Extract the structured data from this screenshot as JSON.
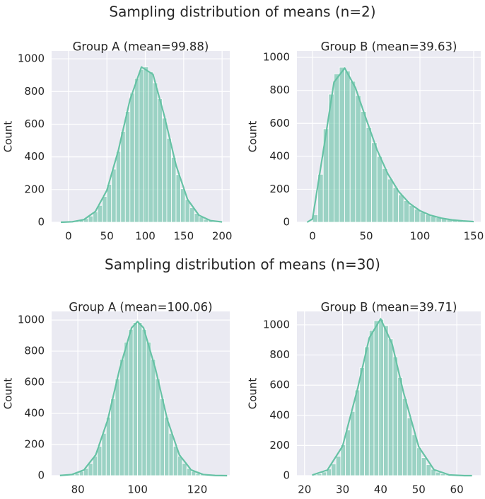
{
  "suptitles": [
    "Sampling distribution of means (n=2)",
    "Sampling distribution of means (n=30)"
  ],
  "chart_data": [
    {
      "type": "histogram",
      "title": "Group A (mean=99.88)",
      "ylabel": "Count",
      "color": "#66c2a5",
      "grid": true,
      "bins": [
        -4,
        2,
        8,
        14,
        20,
        26,
        32,
        38,
        44,
        50,
        56,
        62,
        68,
        74,
        80,
        86,
        92,
        98,
        104,
        110,
        116,
        122,
        128,
        134,
        140,
        146,
        152,
        158,
        164,
        170,
        176,
        182,
        188,
        194
      ],
      "values": [
        1,
        3,
        6,
        12,
        22,
        38,
        64,
        103,
        158,
        232,
        325,
        434,
        556,
        678,
        790,
        880,
        935,
        950,
        921,
        853,
        755,
        637,
        514,
        397,
        291,
        205,
        138,
        89,
        54,
        32,
        18,
        10,
        5
      ],
      "kde": {
        "x": [
          -10,
          5,
          20,
          35,
          50,
          65,
          80,
          95,
          110,
          125,
          140,
          155,
          170,
          185,
          200
        ],
        "values": [
          0,
          3,
          16,
          66,
          196,
          441,
          748,
          950,
          905,
          647,
          349,
          140,
          42,
          10,
          2
        ]
      },
      "xlim": [
        -22,
        210
      ],
      "ylim": [
        0,
        1048
      ],
      "xticks": [
        0,
        50,
        100,
        150,
        200
      ],
      "yticks": [
        0,
        200,
        400,
        600,
        800,
        1000
      ]
    },
    {
      "type": "histogram",
      "title": "Group B (mean=39.63)",
      "ylabel": "Count",
      "color": "#66c2a5",
      "grid": true,
      "bins": [
        0,
        5,
        10,
        15,
        20,
        25,
        30,
        35,
        40,
        45,
        50,
        55,
        60,
        65,
        70,
        75,
        80,
        85,
        90,
        95,
        100,
        105,
        110,
        115,
        120,
        125,
        130,
        135,
        140,
        145
      ],
      "values": [
        46,
        291,
        567,
        777,
        900,
        940,
        918,
        855,
        769,
        672,
        574,
        482,
        399,
        325,
        262,
        210,
        166,
        131,
        102,
        79,
        61,
        47,
        36,
        28,
        21,
        16,
        12,
        9,
        7
      ],
      "kde": {
        "x": [
          -5,
          0,
          10,
          20,
          30,
          40,
          50,
          60,
          70,
          80,
          90,
          100,
          110,
          120,
          130,
          140,
          150
        ],
        "values": [
          0,
          20,
          430,
          850,
          935,
          815,
          625,
          440,
          295,
          188,
          116,
          70,
          42,
          25,
          14,
          8,
          4
        ]
      },
      "xlim": [
        -14.5,
        156.6
      ],
      "ylim": [
        0,
        1039
      ],
      "xticks": [
        0,
        50,
        100,
        150
      ],
      "yticks": [
        0,
        200,
        400,
        600,
        800,
        1000
      ]
    },
    {
      "type": "histogram",
      "title": "Group A (mean=100.06)",
      "ylabel": "Count",
      "color": "#66c2a5",
      "grid": true,
      "bins": [
        76,
        77.5,
        79,
        80.5,
        82,
        83.5,
        85,
        86.5,
        88,
        89.5,
        91,
        92.5,
        94,
        95.5,
        97,
        98.5,
        100,
        101.5,
        103,
        104.5,
        106,
        107.5,
        109,
        110.5,
        112,
        113.5,
        115,
        116.5,
        118,
        119.5,
        121,
        122.5,
        124,
        125.5,
        127
      ],
      "values": [
        4,
        8,
        15,
        27,
        47,
        79,
        125,
        189,
        272,
        376,
        494,
        622,
        748,
        858,
        940,
        984,
        984,
        940,
        858,
        748,
        622,
        494,
        376,
        272,
        189,
        125,
        79,
        47,
        27,
        15,
        8,
        4,
        2,
        1
      ],
      "kde": {
        "x": [
          74,
          78,
          82,
          86,
          90,
          94,
          98,
          100,
          102,
          106,
          110,
          114,
          118,
          122,
          126,
          130
        ],
        "values": [
          1,
          7,
          36,
          134,
          358,
          686,
          950,
          990,
          950,
          686,
          358,
          134,
          36,
          7,
          1,
          0
        ]
      },
      "xlim": [
        71.2,
        130.9
      ],
      "ylim": [
        0,
        1055
      ],
      "xticks": [
        80,
        100,
        120
      ],
      "yticks": [
        0,
        200,
        400,
        600,
        800,
        1000
      ]
    },
    {
      "type": "histogram",
      "title": "Group B (mean=39.71)",
      "ylabel": "Count",
      "color": "#66c2a5",
      "grid": true,
      "bins": [
        22,
        23.25,
        24.5,
        25.75,
        27,
        28.25,
        29.5,
        30.75,
        32,
        33.25,
        34.5,
        35.75,
        37,
        38.25,
        39.5,
        40.75,
        42,
        43.25,
        44.5,
        45.75,
        47,
        48.25,
        49.5,
        50.75,
        52,
        53.25,
        54.5,
        55.75,
        57,
        58.25,
        59.5,
        60.75,
        62
      ],
      "values": [
        6,
        12,
        24,
        44,
        78,
        129,
        204,
        303,
        426,
        568,
        716,
        854,
        963,
        1028,
        1037,
        994,
        907,
        788,
        651,
        511,
        382,
        271,
        184,
        119,
        73,
        42,
        23,
        12,
        6,
        3,
        1,
        1
      ],
      "kde": {
        "x": [
          22,
          26,
          30,
          34,
          37,
          40,
          43,
          46,
          50,
          54,
          58,
          62,
          64
        ],
        "values": [
          4,
          37,
          196,
          583,
          913,
          1040,
          874,
          552,
          192,
          40,
          5,
          0,
          0
        ]
      },
      "xlim": [
        18,
        66.3
      ],
      "ylim": [
        0,
        1089
      ],
      "xticks": [
        20,
        30,
        40,
        50,
        60
      ],
      "yticks": [
        0,
        200,
        400,
        600,
        800,
        1000
      ]
    }
  ]
}
